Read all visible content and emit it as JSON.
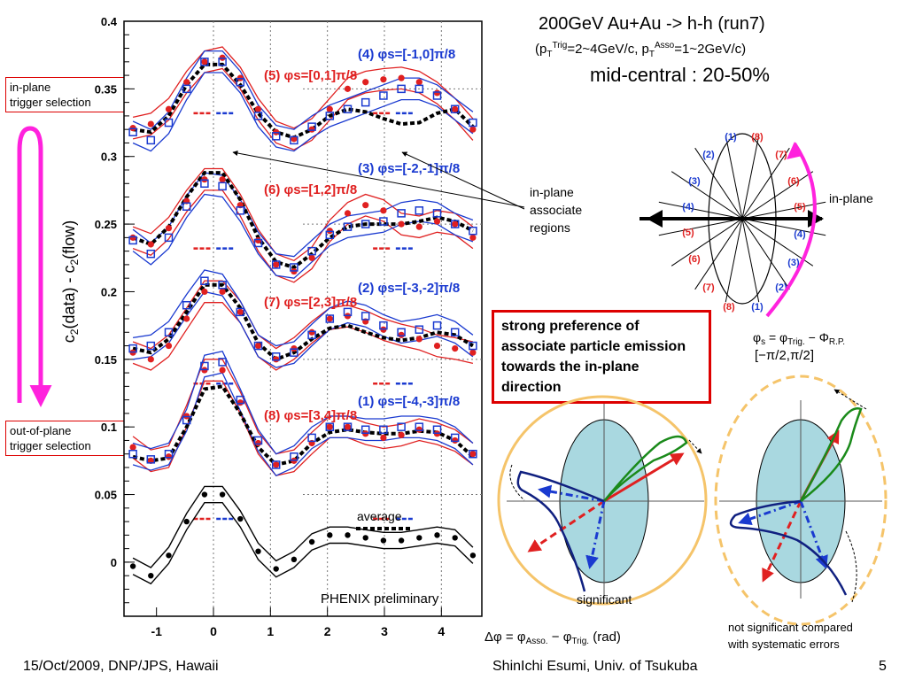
{
  "header": {
    "title": "200GeV Au+Au -> h-h (run7)",
    "subtitle_pre": "(p",
    "subtitle_sub1": "T",
    "subtitle_sup1": "Trig",
    "subtitle_mid": "=2~4GeV/c, p",
    "subtitle_sub2": "T",
    "subtitle_sup2": "Asso",
    "subtitle_post": "=1~2GeV/c)",
    "centrality": "mid-central : 20-50%"
  },
  "labels": {
    "in_plane_trigger": [
      "in-plane",
      "trigger selection"
    ],
    "out_of_plane_trigger": [
      "out-of-plane",
      "trigger selection"
    ],
    "in_plane_associate": [
      "in-plane",
      "associate",
      "regions"
    ],
    "strong_preference": "strong preference of associate particle emission towards the in-plane direction",
    "average": "average",
    "phenix": "PHENIX preliminary",
    "significant": "significant",
    "not_significant": [
      "not significant compared",
      "with systematic errors"
    ],
    "in_plane": "in-plane",
    "phi_s_formula": "φs = φTrig. − ΦR.P.",
    "phi_s_range": "[−π/2,π/2]",
    "xlabel": "Δφ = φAsso. − φTrig. (rad)",
    "ylabel": "c2(data) - c2(flow)"
  },
  "footer": {
    "date": "15/Oct/2009, DNP/JPS, Hawaii",
    "author": "ShinIchi Esumi, Univ. of Tsukuba",
    "page": "5"
  },
  "wheel": {
    "red_labels": [
      "(8)",
      "(7)",
      "(6)",
      "(5)",
      "(5)",
      "(6)",
      "(7)",
      "(8)"
    ],
    "blue_labels": [
      "(1)",
      "(2)",
      "(3)",
      "(4)",
      "(4)",
      "(3)",
      "(2)",
      "(1)"
    ]
  },
  "colors": {
    "red": "#dd1111",
    "blue": "#1122cc",
    "magenta": "#ff22dd",
    "gold": "#f5c46a",
    "ellipse_fill": "#a9d8e0",
    "green": "#1a8a1a",
    "navy": "#102080"
  },
  "chart_data": {
    "type": "line",
    "xlabel": "Δφ = φAsso. − φTrig. (rad)",
    "ylabel": "c2(data) - c2(flow)",
    "xlim": [
      -1.57,
      4.71
    ],
    "ylim": [
      -0.04,
      0.4
    ],
    "xticks": [
      -1,
      0,
      1,
      2,
      3,
      4
    ],
    "yticks": [
      0,
      0.05,
      0.1,
      0.15,
      0.2,
      0.25,
      0.3,
      0.35,
      0.4
    ],
    "ytick_labels": [
      "0",
      "0.05",
      "0.1",
      "0.15",
      "0.2",
      "0.25",
      "0.3",
      "0.35",
      "0.4"
    ],
    "panels": [
      {
        "offset": 0.3,
        "red_label": "(5) φs=[0,1]π/8",
        "blue_label": "(4) φs=[-1,0]π/8",
        "red_values": [
          0.021,
          0.024,
          0.035,
          0.055,
          0.07,
          0.073,
          0.058,
          0.035,
          0.018,
          0.013,
          0.02,
          0.035,
          0.05,
          0.055,
          0.057,
          0.058,
          0.055,
          0.047,
          0.035,
          0.02
        ],
        "blue_values": [
          0.018,
          0.012,
          0.025,
          0.05,
          0.07,
          0.07,
          0.055,
          0.03,
          0.015,
          0.012,
          0.022,
          0.03,
          0.035,
          0.04,
          0.045,
          0.05,
          0.05,
          0.045,
          0.035,
          0.025
        ],
        "avg_values": [
          0.02,
          0.018,
          0.03,
          0.053,
          0.068,
          0.068,
          0.053,
          0.032,
          0.018,
          0.014,
          0.02,
          0.03,
          0.035,
          0.033,
          0.028,
          0.024,
          0.025,
          0.032,
          0.035,
          0.022
        ]
      },
      {
        "offset": 0.2,
        "red_label": "(6) φs=[1,2]π/8",
        "blue_label": "(3) φs=[-2,-1]π/8",
        "red_values": [
          0.04,
          0.035,
          0.047,
          0.067,
          0.083,
          0.083,
          0.064,
          0.038,
          0.02,
          0.015,
          0.025,
          0.045,
          0.058,
          0.064,
          0.06,
          0.05,
          0.048,
          0.052,
          0.05,
          0.04
        ],
        "blue_values": [
          0.038,
          0.028,
          0.04,
          0.063,
          0.08,
          0.078,
          0.06,
          0.036,
          0.02,
          0.018,
          0.03,
          0.042,
          0.048,
          0.05,
          0.052,
          0.058,
          0.06,
          0.058,
          0.05,
          0.045
        ],
        "avg_values": [
          0.04,
          0.035,
          0.048,
          0.07,
          0.088,
          0.088,
          0.068,
          0.04,
          0.022,
          0.018,
          0.028,
          0.04,
          0.048,
          0.05,
          0.05,
          0.05,
          0.052,
          0.055,
          0.052,
          0.045
        ]
      },
      {
        "offset": 0.1,
        "red_label": "(7) φs=[2,3]π/8",
        "blue_label": "(2) φs=[-3,-2]π/8",
        "red_values": [
          0.055,
          0.05,
          0.06,
          0.08,
          0.1,
          0.1,
          0.085,
          0.06,
          0.05,
          0.058,
          0.07,
          0.08,
          0.082,
          0.078,
          0.072,
          0.068,
          0.065,
          0.06,
          0.058,
          0.055
        ],
        "blue_values": [
          0.058,
          0.06,
          0.07,
          0.09,
          0.108,
          0.105,
          0.085,
          0.06,
          0.052,
          0.055,
          0.068,
          0.08,
          0.085,
          0.082,
          0.075,
          0.07,
          0.072,
          0.075,
          0.07,
          0.06
        ],
        "avg_values": [
          0.058,
          0.055,
          0.065,
          0.085,
          0.105,
          0.105,
          0.088,
          0.062,
          0.05,
          0.055,
          0.065,
          0.073,
          0.075,
          0.07,
          0.066,
          0.064,
          0.066,
          0.07,
          0.068,
          0.06
        ]
      },
      {
        "offset": 0.0,
        "red_label": "(8) φs=[3,4]π/8",
        "blue_label": "(1) φs=[-4,-3]π/8",
        "red_values": [
          0.085,
          0.075,
          0.078,
          0.108,
          0.142,
          0.142,
          0.118,
          0.088,
          0.072,
          0.075,
          0.088,
          0.1,
          0.1,
          0.095,
          0.092,
          0.094,
          0.098,
          0.095,
          0.09,
          0.08
        ],
        "blue_values": [
          0.08,
          0.076,
          0.08,
          0.105,
          0.145,
          0.148,
          0.12,
          0.09,
          0.072,
          0.078,
          0.092,
          0.1,
          0.1,
          0.098,
          0.098,
          0.1,
          0.1,
          0.098,
          0.092,
          0.08
        ],
        "avg_values": [
          0.078,
          0.075,
          0.077,
          0.1,
          0.128,
          0.13,
          0.11,
          0.085,
          0.072,
          0.075,
          0.088,
          0.096,
          0.098,
          0.096,
          0.095,
          0.095,
          0.097,
          0.096,
          0.09,
          0.078
        ]
      }
    ],
    "average_curve": {
      "name": "average",
      "values": [
        -0.003,
        -0.01,
        0.005,
        0.03,
        0.05,
        0.05,
        0.032,
        0.008,
        -0.005,
        0.002,
        0.015,
        0.02,
        0.02,
        0.018,
        0.016,
        0.016,
        0.018,
        0.02,
        0.018,
        0.005
      ]
    }
  }
}
